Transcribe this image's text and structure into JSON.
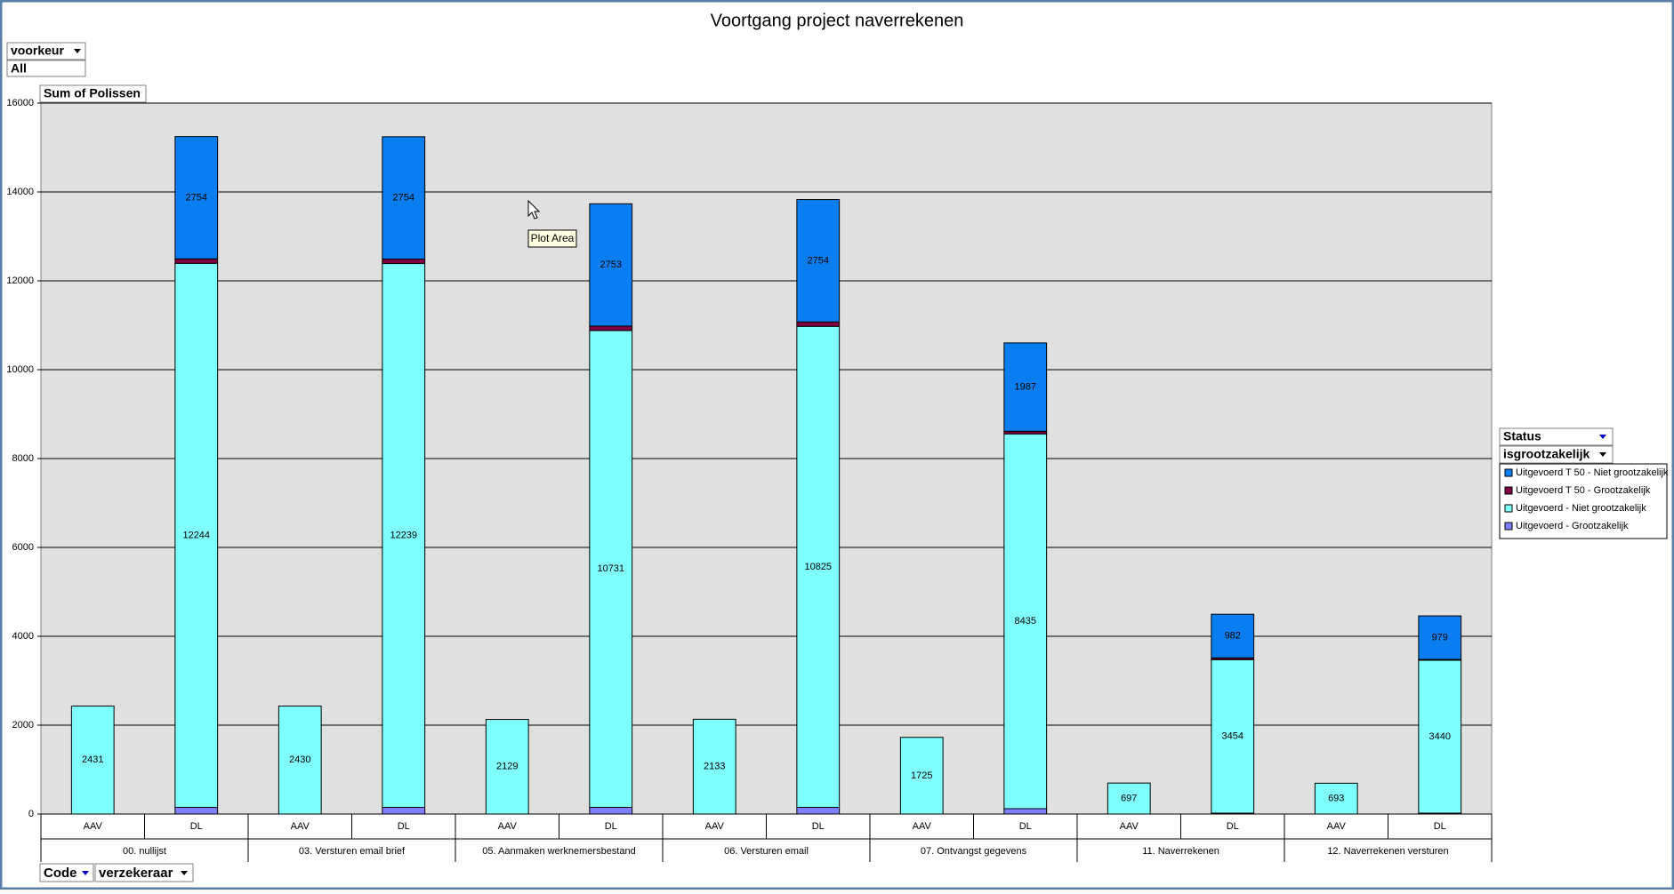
{
  "chart_data": {
    "type": "stacked_bar",
    "title": "Voortgang project naverrekenen",
    "categories": [
      "AAV",
      "DL",
      "AAV",
      "DL",
      "AAV",
      "DL",
      "AAV",
      "DL",
      "AAV",
      "DL",
      "AAV",
      "DL",
      "AAV",
      "DL"
    ],
    "groups": [
      "00. nullijst",
      "03. Versturen email brief",
      "05. Aanmaken werknemersbestand",
      "06. Versturen email",
      "07. Ontvangst gegevens",
      "11. Naverrekenen",
      "12. Naverrekenen versturen"
    ],
    "series": [
      {
        "name": "Uitgevoerd - Grootzakelijk",
        "color": "#8080ff",
        "show_labels": false,
        "values": [
          null,
          150,
          null,
          150,
          null,
          150,
          null,
          150,
          null,
          120,
          null,
          20,
          null,
          20
        ]
      },
      {
        "name": "Uitgevoerd - Niet grootzakelijk",
        "color": "#80ffff",
        "show_labels": true,
        "values": [
          2431,
          12244,
          2430,
          12239,
          2129,
          10731,
          2133,
          10825,
          1725,
          8435,
          697,
          3454,
          693,
          3440
        ]
      },
      {
        "name": "Uitgevoerd T 50 - Grootzakelijk",
        "color": "#800040",
        "show_labels": false,
        "values": [
          null,
          100,
          null,
          100,
          null,
          100,
          null,
          100,
          null,
          60,
          null,
          40,
          null,
          20
        ]
      },
      {
        "name": "Uitgevoerd T 50 - Niet grootzakelijk",
        "color": "#0a7ef0",
        "show_labels": true,
        "values": [
          null,
          2754,
          null,
          2754,
          null,
          2753,
          null,
          2754,
          null,
          1987,
          null,
          982,
          null,
          979
        ]
      }
    ],
    "ylim": [
      0,
      16000
    ],
    "yticks": [
      0,
      2000,
      4000,
      6000,
      8000,
      10000,
      12000,
      14000,
      16000
    ],
    "grid": true
  },
  "pivot": {
    "page_field": "voorkeur",
    "page_value": "All",
    "data_field": "Sum of Polissen",
    "series_fields": [
      "Status",
      "isgrootzakelijk"
    ],
    "category_fields": [
      "Code",
      "verzekeraar"
    ]
  },
  "tooltip": "Plot Area"
}
